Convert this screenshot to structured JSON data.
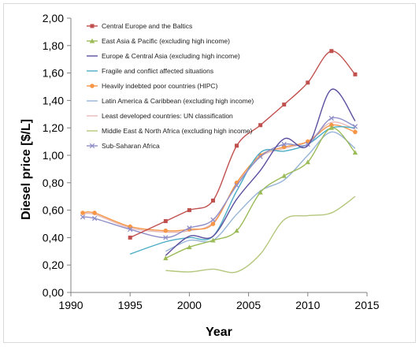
{
  "chart_data": {
    "type": "line",
    "title": "",
    "xlabel": "Year",
    "ylabel": "Diesel price [$/L]",
    "xlim": [
      1990,
      2015
    ],
    "ylim": [
      0,
      2
    ],
    "x_ticks": [
      "1990",
      "1995",
      "2000",
      "2005",
      "2010",
      "2015"
    ],
    "y_ticks": [
      "0,00",
      "0,20",
      "0,40",
      "0,60",
      "0,80",
      "1,00",
      "1,20",
      "1,40",
      "1,60",
      "1,80",
      "2,00"
    ],
    "grid": false,
    "legend_position": "top-left",
    "series": [
      {
        "name": "Central Europe and the Baltics",
        "color": "#C0504D",
        "marker": "square",
        "x": [
          1995,
          1998,
          2000,
          2002,
          2004,
          2006,
          2008,
          2010,
          2012,
          2014
        ],
        "y": [
          0.4,
          0.52,
          0.6,
          0.67,
          1.07,
          1.22,
          1.37,
          1.53,
          1.76,
          1.59
        ]
      },
      {
        "name": "East Asia & Pacific (excluding high income)",
        "color": "#9BBB59",
        "marker": "triangle",
        "x": [
          1998,
          2000,
          2002,
          2004,
          2006,
          2008,
          2010,
          2012,
          2014
        ],
        "y": [
          0.25,
          0.33,
          0.38,
          0.45,
          0.73,
          0.85,
          0.95,
          1.2,
          1.02
        ]
      },
      {
        "name": "Europe & Central Asia (excluding high income)",
        "color": "#5B4E9E",
        "marker": "none",
        "x": [
          1998,
          2000,
          2002,
          2004,
          2006,
          2008,
          2010,
          2012,
          2014
        ],
        "y": [
          0.27,
          0.41,
          0.41,
          0.68,
          0.89,
          1.12,
          1.07,
          1.48,
          1.25
        ]
      },
      {
        "name": "Fragile and conflict affected situations",
        "color": "#4BACC6",
        "marker": "none",
        "x": [
          1995,
          1998,
          2000,
          2002,
          2004,
          2006,
          2008,
          2010,
          2012,
          2014
        ],
        "y": [
          0.28,
          0.37,
          0.4,
          0.41,
          0.74,
          1.02,
          1.03,
          1.08,
          1.2,
          1.2
        ]
      },
      {
        "name": "Heavily indebted poor countries (HIPC)",
        "color": "#F79646",
        "marker": "circle",
        "x": [
          1991,
          1992,
          1995,
          1998,
          2000,
          2002,
          2004,
          2006,
          2008,
          2010,
          2012,
          2014
        ],
        "y": [
          0.58,
          0.58,
          0.48,
          0.45,
          0.46,
          0.5,
          0.8,
          1.0,
          1.06,
          1.1,
          1.22,
          1.17
        ]
      },
      {
        "name": "Latin America & Caribbean (excluding high income)",
        "color": "#95B3D7",
        "marker": "none",
        "x": [
          1998,
          2000,
          2002,
          2004,
          2006,
          2008,
          2010,
          2012,
          2014
        ],
        "y": [
          0.3,
          0.38,
          0.38,
          0.57,
          0.74,
          0.82,
          1.0,
          1.17,
          1.05
        ]
      },
      {
        "name": "Least developed countries: UN classification",
        "color": "#E6B9B8",
        "marker": "none",
        "x": [
          1991,
          1992,
          1995,
          1998,
          2000,
          2002,
          2004,
          2006,
          2008,
          2010,
          2012,
          2014
        ],
        "y": [
          0.57,
          0.57,
          0.47,
          0.44,
          0.45,
          0.51,
          0.79,
          0.99,
          1.05,
          1.1,
          1.24,
          1.19
        ]
      },
      {
        "name": "Middle East & North Africa (excluding high income)",
        "color": "#B4C77C",
        "marker": "none",
        "x": [
          1998,
          2000,
          2002,
          2004,
          2006,
          2008,
          2010,
          2012,
          2014
        ],
        "y": [
          0.16,
          0.15,
          0.17,
          0.15,
          0.28,
          0.53,
          0.56,
          0.58,
          0.7
        ]
      },
      {
        "name": "Sub-Saharan Africa",
        "color": "#8E8EC8",
        "marker": "x",
        "x": [
          1991,
          1992,
          1995,
          1998,
          2000,
          2002,
          2004,
          2006,
          2008,
          2010,
          2012,
          2014
        ],
        "y": [
          0.55,
          0.54,
          0.46,
          0.4,
          0.47,
          0.53,
          0.78,
          0.99,
          1.08,
          1.08,
          1.27,
          1.21
        ]
      }
    ]
  }
}
